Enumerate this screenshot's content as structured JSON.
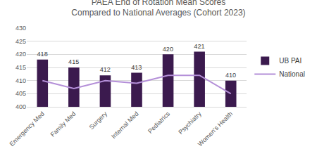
{
  "chart_data": {
    "type": "bar",
    "title": "PAEA End of Rotation Mean Scores\nCompared to National Averages (Cohort 2023)",
    "categories": [
      "Emergency Med",
      "Family Med",
      "Surgery",
      "Internal Med",
      "Pediatrics",
      "Psychiatry",
      "Women's Health"
    ],
    "series": [
      {
        "name": "UB PAI",
        "type": "bar",
        "color": "#3b1a4e",
        "data_labels": true,
        "values": [
          418,
          415,
          412,
          413,
          420,
          421,
          410
        ]
      },
      {
        "name": "National",
        "type": "line",
        "color": "#b48fd8",
        "values": [
          410,
          407,
          410,
          409,
          412,
          412,
          405
        ]
      }
    ],
    "ylim": [
      400,
      430
    ],
    "yticks": [
      400,
      405,
      410,
      415,
      420,
      425,
      430
    ],
    "grid": true,
    "legend": "right"
  }
}
